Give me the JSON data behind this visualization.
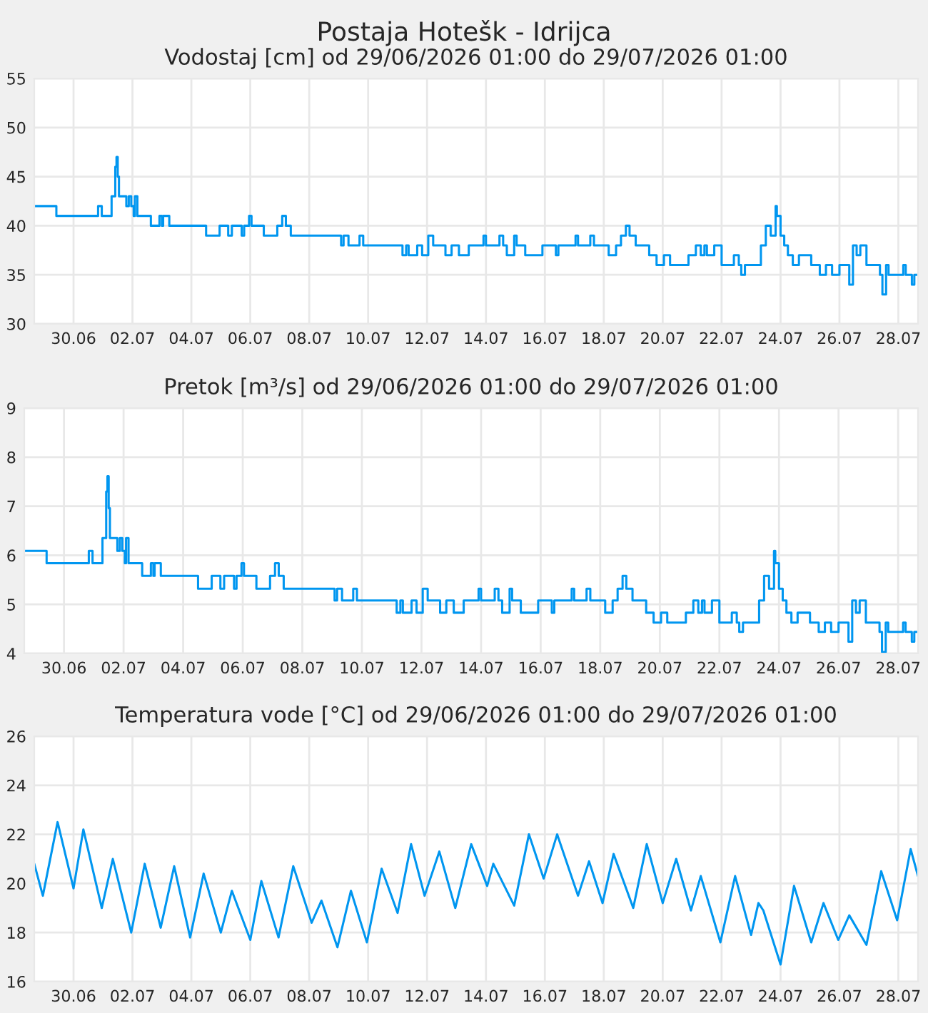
{
  "chart_data": [
    {
      "type": "step",
      "title": "Postaja Hotešk - Idrijca",
      "subtitle": "Vodostaj [cm] od 29/06/2026 01:00 do 29/07/2026 01:00",
      "grid": true,
      "xlim": [
        "2026-06-29T01:00",
        "2026-07-29T01:00"
      ],
      "xticks": [
        {
          "value": "2026-06-30T09:00",
          "label": "30.06"
        },
        {
          "value": "2026-07-02T09:00",
          "label": "02.07"
        },
        {
          "value": "2026-07-04T09:00",
          "label": "04.07"
        },
        {
          "value": "2026-07-06T09:00",
          "label": "06.07"
        },
        {
          "value": "2026-07-08T09:00",
          "label": "08.07"
        },
        {
          "value": "2026-07-10T09:00",
          "label": "10.07"
        },
        {
          "value": "2026-07-12T09:00",
          "label": "12.07"
        },
        {
          "value": "2026-07-14T09:00",
          "label": "14.07"
        },
        {
          "value": "2026-07-16T09:00",
          "label": "16.07"
        },
        {
          "value": "2026-07-18T09:00",
          "label": "18.07"
        },
        {
          "value": "2026-07-20T09:00",
          "label": "20.07"
        },
        {
          "value": "2026-07-22T09:00",
          "label": "22.07"
        },
        {
          "value": "2026-07-24T09:00",
          "label": "24.07"
        },
        {
          "value": "2026-07-26T09:00",
          "label": "26.07"
        },
        {
          "value": "2026-07-28T09:00",
          "label": "28.07"
        }
      ],
      "ylim": [
        30,
        55
      ],
      "yticks": [
        30,
        35,
        40,
        45,
        50,
        55
      ],
      "x": [
        "2026-06-29T01:00",
        "2026-06-29T19:00",
        "2026-07-01T05:00",
        "2026-07-01T08:00",
        "2026-07-01T16:00",
        "2026-07-01T19:00",
        "2026-07-01T20:00",
        "2026-07-01T21:00",
        "2026-07-01T22:00",
        "2026-07-02T04:00",
        "2026-07-02T06:00",
        "2026-07-02T08:00",
        "2026-07-02T10:00",
        "2026-07-02T11:00",
        "2026-07-02T13:00",
        "2026-07-03T00:00",
        "2026-07-03T07:00",
        "2026-07-03T09:00",
        "2026-07-03T10:00",
        "2026-07-03T15:00",
        "2026-07-04T21:00",
        "2026-07-05T08:00",
        "2026-07-05T15:00",
        "2026-07-05T18:00",
        "2026-07-06T02:00",
        "2026-07-06T04:00",
        "2026-07-06T08:00",
        "2026-07-06T10:00",
        "2026-07-06T20:00",
        "2026-07-07T07:00",
        "2026-07-07T11:00",
        "2026-07-07T14:00",
        "2026-07-07T18:00",
        "2026-07-09T11:00",
        "2026-07-09T13:00",
        "2026-07-09T17:00",
        "2026-07-10T02:00",
        "2026-07-10T05:00",
        "2026-07-11T13:00",
        "2026-07-11T16:00",
        "2026-07-11T18:00",
        "2026-07-12T01:00",
        "2026-07-12T05:00",
        "2026-07-12T10:00",
        "2026-07-12T14:00",
        "2026-07-13T00:00",
        "2026-07-13T05:00",
        "2026-07-13T11:00",
        "2026-07-13T19:00",
        "2026-07-14T07:00",
        "2026-07-14T09:00",
        "2026-07-14T20:00",
        "2026-07-14T23:00",
        "2026-07-15T02:00",
        "2026-07-15T08:00",
        "2026-07-15T10:00",
        "2026-07-15T17:00",
        "2026-07-16T07:00",
        "2026-07-16T18:00",
        "2026-07-16T20:00",
        "2026-07-17T10:00",
        "2026-07-17T12:00",
        "2026-07-17T22:00",
        "2026-07-18T01:00",
        "2026-07-18T13:00",
        "2026-07-18T19:00",
        "2026-07-18T23:00",
        "2026-07-19T03:00",
        "2026-07-19T06:00",
        "2026-07-19T11:00",
        "2026-07-19T22:00",
        "2026-07-20T04:00",
        "2026-07-20T10:00",
        "2026-07-20T15:00",
        "2026-07-21T06:00",
        "2026-07-21T12:00",
        "2026-07-21T16:00",
        "2026-07-21T19:00",
        "2026-07-21T21:00",
        "2026-07-22T03:00",
        "2026-07-22T09:00",
        "2026-07-22T19:00",
        "2026-07-22T23:00",
        "2026-07-23T01:00",
        "2026-07-23T04:00",
        "2026-07-23T17:00",
        "2026-07-23T21:00",
        "2026-07-24T01:00",
        "2026-07-24T05:00",
        "2026-07-24T06:00",
        "2026-07-24T09:00",
        "2026-07-24T12:00",
        "2026-07-24T15:00",
        "2026-07-24T19:00",
        "2026-07-25T00:00",
        "2026-07-25T10:00",
        "2026-07-25T17:00",
        "2026-07-25T22:00",
        "2026-07-26T03:00",
        "2026-07-26T09:00",
        "2026-07-26T17:00",
        "2026-07-26T20:00",
        "2026-07-26T23:00",
        "2026-07-27T02:00",
        "2026-07-27T07:00",
        "2026-07-27T18:00",
        "2026-07-27T20:00",
        "2026-07-27T23:00",
        "2026-07-28T01:00",
        "2026-07-28T13:00",
        "2026-07-28T15:00",
        "2026-07-28T20:00",
        "2026-07-28T22:00",
        "2026-07-29T01:00"
      ],
      "series": [
        {
          "color": "#0096f0",
          "values": [
            42,
            41,
            42,
            41,
            43,
            46,
            47,
            45,
            43,
            42,
            43,
            42,
            41,
            43,
            41,
            40,
            41,
            40,
            41,
            40,
            39,
            40,
            39,
            40,
            39,
            40,
            41,
            40,
            39,
            40,
            41,
            40,
            39,
            38,
            39,
            38,
            39,
            38,
            37,
            38,
            37,
            38,
            37,
            39,
            38,
            37,
            38,
            37,
            38,
            39,
            38,
            39,
            38,
            37,
            39,
            38,
            37,
            38,
            37,
            38,
            39,
            38,
            39,
            38,
            37,
            38,
            39,
            40,
            39,
            38,
            37,
            36,
            37,
            36,
            37,
            38,
            37,
            38,
            37,
            38,
            36,
            37,
            36,
            35,
            36,
            38,
            40,
            39,
            42,
            41,
            39,
            38,
            37,
            36,
            37,
            36,
            35,
            36,
            35,
            36,
            34,
            38,
            37,
            38,
            36,
            35,
            33,
            36,
            35,
            36,
            35,
            34,
            35,
            35
          ]
        }
      ]
    },
    {
      "type": "step",
      "subtitle": "Pretok [m³/s] od 29/06/2026 01:00 do 29/07/2026 01:00",
      "grid": true,
      "xlim": [
        "2026-06-29T01:00",
        "2026-07-29T01:00"
      ],
      "xticks": [
        {
          "value": "2026-06-30T09:00",
          "label": "30.06"
        },
        {
          "value": "2026-07-02T09:00",
          "label": "02.07"
        },
        {
          "value": "2026-07-04T09:00",
          "label": "04.07"
        },
        {
          "value": "2026-07-06T09:00",
          "label": "06.07"
        },
        {
          "value": "2026-07-08T09:00",
          "label": "08.07"
        },
        {
          "value": "2026-07-10T09:00",
          "label": "10.07"
        },
        {
          "value": "2026-07-12T09:00",
          "label": "12.07"
        },
        {
          "value": "2026-07-14T09:00",
          "label": "14.07"
        },
        {
          "value": "2026-07-16T09:00",
          "label": "16.07"
        },
        {
          "value": "2026-07-18T09:00",
          "label": "18.07"
        },
        {
          "value": "2026-07-20T09:00",
          "label": "20.07"
        },
        {
          "value": "2026-07-22T09:00",
          "label": "22.07"
        },
        {
          "value": "2026-07-24T09:00",
          "label": "24.07"
        },
        {
          "value": "2026-07-26T09:00",
          "label": "26.07"
        },
        {
          "value": "2026-07-28T09:00",
          "label": "28.07"
        }
      ],
      "ylim": [
        4,
        9
      ],
      "yticks": [
        4,
        5,
        6,
        7,
        8,
        9
      ],
      "x": [
        "2026-06-29T01:00",
        "2026-06-29T19:00",
        "2026-07-01T05:00",
        "2026-07-01T08:00",
        "2026-07-01T16:00",
        "2026-07-01T19:00",
        "2026-07-01T20:00",
        "2026-07-01T21:00",
        "2026-07-01T22:00",
        "2026-07-02T04:00",
        "2026-07-02T06:00",
        "2026-07-02T08:00",
        "2026-07-02T10:00",
        "2026-07-02T11:00",
        "2026-07-02T13:00",
        "2026-07-03T00:00",
        "2026-07-03T07:00",
        "2026-07-03T09:00",
        "2026-07-03T10:00",
        "2026-07-03T15:00",
        "2026-07-04T21:00",
        "2026-07-05T08:00",
        "2026-07-05T15:00",
        "2026-07-05T18:00",
        "2026-07-06T02:00",
        "2026-07-06T04:00",
        "2026-07-06T08:00",
        "2026-07-06T10:00",
        "2026-07-06T20:00",
        "2026-07-07T07:00",
        "2026-07-07T11:00",
        "2026-07-07T14:00",
        "2026-07-07T18:00",
        "2026-07-09T11:00",
        "2026-07-09T13:00",
        "2026-07-09T17:00",
        "2026-07-10T02:00",
        "2026-07-10T05:00",
        "2026-07-11T13:00",
        "2026-07-11T16:00",
        "2026-07-11T18:00",
        "2026-07-12T01:00",
        "2026-07-12T05:00",
        "2026-07-12T10:00",
        "2026-07-12T14:00",
        "2026-07-13T00:00",
        "2026-07-13T05:00",
        "2026-07-13T11:00",
        "2026-07-13T19:00",
        "2026-07-14T07:00",
        "2026-07-14T09:00",
        "2026-07-14T20:00",
        "2026-07-14T23:00",
        "2026-07-15T02:00",
        "2026-07-15T08:00",
        "2026-07-15T10:00",
        "2026-07-15T17:00",
        "2026-07-16T07:00",
        "2026-07-16T18:00",
        "2026-07-16T20:00",
        "2026-07-17T10:00",
        "2026-07-17T12:00",
        "2026-07-17T22:00",
        "2026-07-18T01:00",
        "2026-07-18T13:00",
        "2026-07-18T19:00",
        "2026-07-18T23:00",
        "2026-07-19T03:00",
        "2026-07-19T06:00",
        "2026-07-19T11:00",
        "2026-07-19T22:00",
        "2026-07-20T04:00",
        "2026-07-20T10:00",
        "2026-07-20T15:00",
        "2026-07-21T06:00",
        "2026-07-21T12:00",
        "2026-07-21T16:00",
        "2026-07-21T19:00",
        "2026-07-21T21:00",
        "2026-07-22T03:00",
        "2026-07-22T09:00",
        "2026-07-22T19:00",
        "2026-07-22T23:00",
        "2026-07-23T01:00",
        "2026-07-23T04:00",
        "2026-07-23T17:00",
        "2026-07-23T21:00",
        "2026-07-24T01:00",
        "2026-07-24T05:00",
        "2026-07-24T06:00",
        "2026-07-24T09:00",
        "2026-07-24T12:00",
        "2026-07-24T15:00",
        "2026-07-24T19:00",
        "2026-07-25T00:00",
        "2026-07-25T10:00",
        "2026-07-25T17:00",
        "2026-07-25T22:00",
        "2026-07-26T03:00",
        "2026-07-26T09:00",
        "2026-07-26T17:00",
        "2026-07-26T20:00",
        "2026-07-26T23:00",
        "2026-07-27T02:00",
        "2026-07-27T07:00",
        "2026-07-27T18:00",
        "2026-07-27T20:00",
        "2026-07-27T23:00",
        "2026-07-28T01:00",
        "2026-07-28T13:00",
        "2026-07-28T15:00",
        "2026-07-28T20:00",
        "2026-07-28T22:00",
        "2026-07-29T01:00"
      ],
      "series": [
        {
          "color": "#0096f0",
          "values": [
            6.09,
            5.84,
            6.09,
            5.84,
            6.35,
            7.3,
            7.61,
            6.96,
            6.35,
            6.09,
            6.35,
            6.09,
            5.84,
            6.35,
            5.84,
            5.58,
            5.84,
            5.58,
            5.84,
            5.58,
            5.32,
            5.58,
            5.32,
            5.58,
            5.32,
            5.58,
            5.84,
            5.58,
            5.32,
            5.58,
            5.84,
            5.58,
            5.32,
            5.08,
            5.32,
            5.08,
            5.32,
            5.08,
            4.83,
            5.08,
            4.83,
            5.08,
            4.83,
            5.32,
            5.08,
            4.83,
            5.08,
            4.83,
            5.08,
            5.32,
            5.08,
            5.32,
            5.08,
            4.83,
            5.32,
            5.08,
            4.83,
            5.08,
            4.83,
            5.08,
            5.32,
            5.08,
            5.32,
            5.08,
            4.83,
            5.08,
            5.32,
            5.58,
            5.32,
            5.08,
            4.83,
            4.63,
            4.83,
            4.63,
            4.83,
            5.08,
            4.83,
            5.08,
            4.83,
            5.08,
            4.63,
            4.83,
            4.63,
            4.44,
            4.63,
            5.08,
            5.58,
            5.32,
            6.09,
            5.84,
            5.32,
            5.08,
            4.83,
            4.63,
            4.83,
            4.63,
            4.44,
            4.63,
            4.44,
            4.63,
            4.24,
            5.08,
            4.83,
            5.08,
            4.63,
            4.44,
            4.03,
            4.63,
            4.44,
            4.63,
            4.44,
            4.24,
            4.44,
            4.44
          ]
        }
      ]
    },
    {
      "type": "line",
      "subtitle": "Temperatura vode [°C] od 29/06/2026 01:00 do 29/07/2026 01:00",
      "grid": true,
      "xlim": [
        "2026-06-29T01:00",
        "2026-07-29T01:00"
      ],
      "xticks": [
        {
          "value": "2026-06-30T09:00",
          "label": "30.06"
        },
        {
          "value": "2026-07-02T09:00",
          "label": "02.07"
        },
        {
          "value": "2026-07-04T09:00",
          "label": "04.07"
        },
        {
          "value": "2026-07-06T09:00",
          "label": "06.07"
        },
        {
          "value": "2026-07-08T09:00",
          "label": "08.07"
        },
        {
          "value": "2026-07-10T09:00",
          "label": "10.07"
        },
        {
          "value": "2026-07-12T09:00",
          "label": "12.07"
        },
        {
          "value": "2026-07-14T09:00",
          "label": "14.07"
        },
        {
          "value": "2026-07-16T09:00",
          "label": "16.07"
        },
        {
          "value": "2026-07-18T09:00",
          "label": "18.07"
        },
        {
          "value": "2026-07-20T09:00",
          "label": "20.07"
        },
        {
          "value": "2026-07-22T09:00",
          "label": "22.07"
        },
        {
          "value": "2026-07-24T09:00",
          "label": "24.07"
        },
        {
          "value": "2026-07-26T09:00",
          "label": "26.07"
        },
        {
          "value": "2026-07-28T09:00",
          "label": "28.07"
        }
      ],
      "ylim": [
        16,
        26
      ],
      "yticks": [
        16,
        18,
        20,
        22,
        24,
        26
      ],
      "x": [
        "2026-06-29T01:00",
        "2026-06-29T08:00",
        "2026-06-29T20:00",
        "2026-06-30T09:00",
        "2026-06-30T17:00",
        "2026-07-01T08:00",
        "2026-07-01T17:00",
        "2026-07-02T08:00",
        "2026-07-02T19:00",
        "2026-07-03T08:00",
        "2026-07-03T19:00",
        "2026-07-04T08:00",
        "2026-07-04T19:00",
        "2026-07-05T09:00",
        "2026-07-05T18:00",
        "2026-07-06T09:00",
        "2026-07-06T18:00",
        "2026-07-07T08:00",
        "2026-07-07T20:00",
        "2026-07-08T11:00",
        "2026-07-08T19:00",
        "2026-07-09T08:00",
        "2026-07-09T19:00",
        "2026-07-10T08:00",
        "2026-07-10T20:00",
        "2026-07-11T09:00",
        "2026-07-11T20:00",
        "2026-07-12T07:00",
        "2026-07-12T19:00",
        "2026-07-13T08:00",
        "2026-07-13T21:00",
        "2026-07-14T10:00",
        "2026-07-14T15:00",
        "2026-07-15T08:00",
        "2026-07-15T20:00",
        "2026-07-16T08:00",
        "2026-07-16T19:00",
        "2026-07-17T12:00",
        "2026-07-17T21:00",
        "2026-07-18T08:00",
        "2026-07-18T17:00",
        "2026-07-19T09:00",
        "2026-07-19T20:00",
        "2026-07-20T09:00",
        "2026-07-20T20:00",
        "2026-07-21T08:00",
        "2026-07-21T16:00",
        "2026-07-22T08:00",
        "2026-07-22T20:00",
        "2026-07-23T09:00",
        "2026-07-23T15:00",
        "2026-07-23T19:00",
        "2026-07-24T09:00",
        "2026-07-24T20:00",
        "2026-07-25T10:00",
        "2026-07-25T20:00",
        "2026-07-26T08:00",
        "2026-07-26T17:00",
        "2026-07-27T07:00",
        "2026-07-27T19:00",
        "2026-07-28T08:00",
        "2026-07-28T19:00",
        "2026-07-29T01:00"
      ],
      "series": [
        {
          "color": "#0096f0",
          "values": [
            20.8,
            19.5,
            22.5,
            19.8,
            22.2,
            19.0,
            21.0,
            18.0,
            20.8,
            18.2,
            20.7,
            17.8,
            20.4,
            18.0,
            19.7,
            17.7,
            20.1,
            17.8,
            20.7,
            18.4,
            19.3,
            17.4,
            19.7,
            17.6,
            20.6,
            18.8,
            21.6,
            19.5,
            21.3,
            19.0,
            21.6,
            19.9,
            20.8,
            19.1,
            22.0,
            20.2,
            22.0,
            19.5,
            20.9,
            19.2,
            21.2,
            19.0,
            21.6,
            19.2,
            21.0,
            18.9,
            20.3,
            17.6,
            20.3,
            17.9,
            19.2,
            18.9,
            16.7,
            19.9,
            17.6,
            19.2,
            17.7,
            18.7,
            17.5,
            20.5,
            18.5,
            21.4,
            20.3
          ]
        }
      ]
    }
  ]
}
